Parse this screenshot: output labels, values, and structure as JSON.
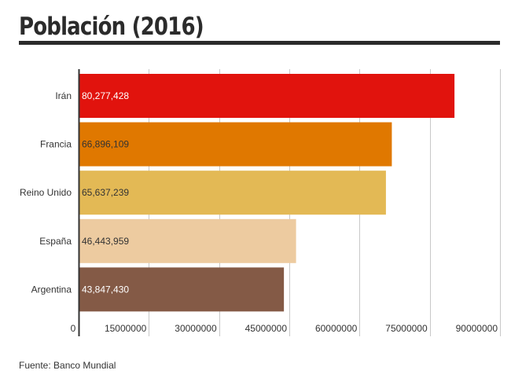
{
  "chart_data": {
    "type": "bar",
    "orientation": "horizontal",
    "title": "Población (2016)",
    "categories": [
      "Irán",
      "Francia",
      "Reino Unido",
      "España",
      "Argentina"
    ],
    "values": [
      80277428,
      66896109,
      65637239,
      46443959,
      43847430
    ],
    "value_labels": [
      "80,277,428",
      "66,896,109",
      "65,637,239",
      "46,443,959",
      "43,847,430"
    ],
    "colors": [
      "#e1130d",
      "#e07800",
      "#e3b955",
      "#edcba0",
      "#845a46"
    ],
    "label_colors": [
      "#ffffff",
      "#333333",
      "#333333",
      "#333333",
      "#ffffff"
    ],
    "xlim": [
      0,
      90000000
    ],
    "xticks": [
      0,
      15000000,
      30000000,
      45000000,
      60000000,
      75000000,
      90000000
    ],
    "xtick_labels": [
      "0",
      "15000000",
      "30000000",
      "45000000",
      "60000000",
      "75000000",
      "90000000"
    ],
    "grid": true,
    "xlabel": "",
    "ylabel": ""
  },
  "source": "Fuente: Banco Mundial"
}
